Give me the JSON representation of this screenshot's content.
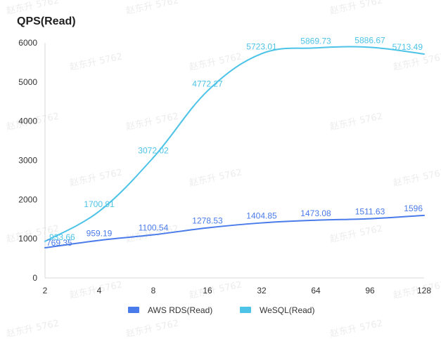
{
  "chart_data": {
    "type": "line",
    "title": "QPS(Read)",
    "xlabel": "",
    "ylabel": "",
    "categories": [
      "2",
      "4",
      "8",
      "16",
      "32",
      "64",
      "96",
      "128"
    ],
    "ylim": [
      0,
      6000
    ],
    "yticks": [
      0,
      1000,
      2000,
      3000,
      4000,
      5000,
      6000
    ],
    "grid": false,
    "legend_position": "bottom",
    "series": [
      {
        "name": "AWS RDS(Read)",
        "color": "#4a7bea",
        "values": [
          769.35,
          959.19,
          1100.54,
          1278.53,
          1404.85,
          1473.08,
          1511.63,
          1596
        ],
        "labels": [
          "769.35",
          "959.19",
          "1100.54",
          "1278.53",
          "1404.85",
          "1473.08",
          "1511.63",
          "1596"
        ]
      },
      {
        "name": "WeSQL(Read)",
        "color": "#4dc3e8",
        "values": [
          933.66,
          1700.91,
          3072.02,
          4772.27,
          5723.01,
          5869.73,
          5886.67,
          5713.49
        ],
        "labels": [
          "933.66",
          "1700.91",
          "3072.02",
          "4772.27",
          "5723.01",
          "5869.73",
          "5886.67",
          "5713.49"
        ]
      }
    ],
    "watermark": "赵东升 5762"
  }
}
